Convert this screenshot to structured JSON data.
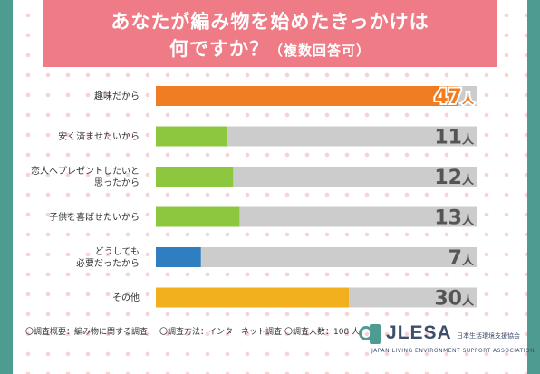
{
  "header": {
    "title_line1": "あなたが編み物を始めたきっかけは",
    "title_line2": "何ですか？",
    "title_sub": "（複数回答可）"
  },
  "colors": {
    "background": "#4e9b92",
    "title_bg": "#ee7b86",
    "bar_track": "#cccccc",
    "value_text": "#555555"
  },
  "chart_data": {
    "type": "bar",
    "orientation": "horizontal",
    "categories": [
      [
        "趣味だから"
      ],
      [
        "安く済ませたいから"
      ],
      [
        "恋人へプレゼントしたいと",
        "思ったから"
      ],
      [
        "子供を喜ばせたいから"
      ],
      [
        "どうしても",
        "必要だったから"
      ],
      [
        "その他"
      ]
    ],
    "values": [
      47,
      11,
      12,
      13,
      7,
      30
    ],
    "value_unit": "人",
    "colors": [
      "#f07d22",
      "#8dc63f",
      "#8dc63f",
      "#8dc63f",
      "#2f7ec1",
      "#f2b01e"
    ],
    "xlim": [
      0,
      50
    ],
    "grid": false,
    "legend": "none"
  },
  "footer": {
    "survey_overview": "〇調査概要：編み物に関する調査",
    "survey_method": "〇調査方法：インターネット調査",
    "survey_count": "〇調査人数：108 人"
  },
  "logo": {
    "name": "LESA",
    "name_prefix": "J",
    "jp": "日本生活環境支援協会",
    "en": "JAPAN LIVING ENVIRONMENT SUPPORT ASSOCIATION"
  }
}
